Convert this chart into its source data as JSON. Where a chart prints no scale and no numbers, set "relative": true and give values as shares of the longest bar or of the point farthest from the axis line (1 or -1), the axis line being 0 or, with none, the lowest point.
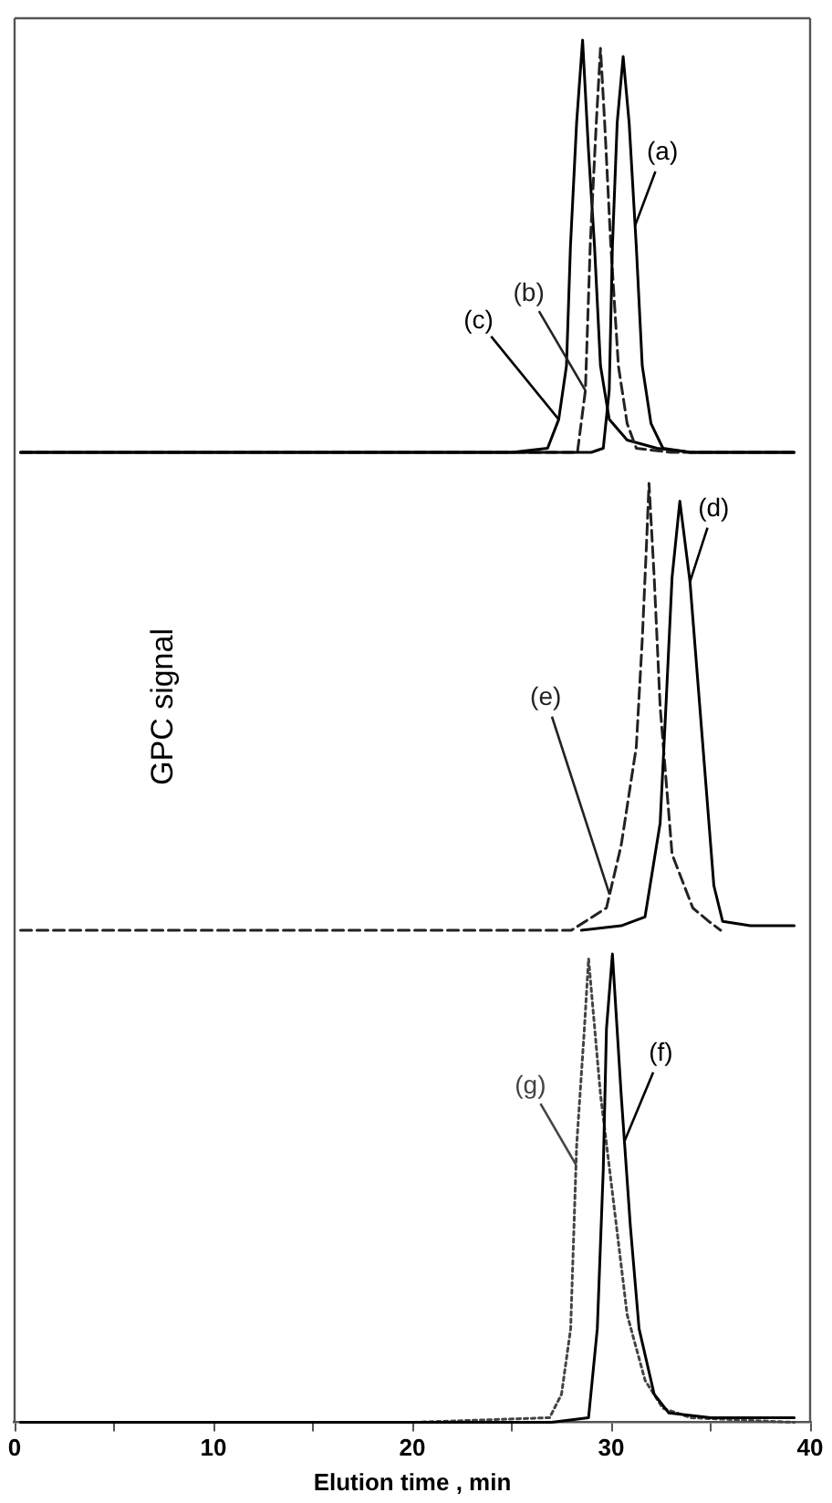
{
  "chart_data": [
    {
      "type": "line",
      "relative": true,
      "xlim": [
        0,
        40
      ],
      "tick_labels": false,
      "series": [
        {
          "name": "(a)",
          "color": "#000000",
          "line_style": "solid",
          "x": [
            0.3,
            10,
            20,
            26,
            29.0,
            29.6,
            29.9,
            30.06,
            30.3,
            30.6,
            30.9,
            31.26,
            31.56,
            32.0,
            32.6,
            34,
            36,
            39.2
          ],
          "values": [
            0,
            0,
            0,
            0,
            0,
            0.01,
            0.15,
            0.5,
            0.8,
            0.96,
            0.8,
            0.5,
            0.21,
            0.07,
            0.01,
            0,
            0,
            0
          ]
        },
        {
          "name": "(b)",
          "color": "#222222",
          "line_style": "dashed",
          "x": [
            0.3,
            10,
            20,
            27,
            28.3,
            28.7,
            28.95,
            29.25,
            29.46,
            29.67,
            29.97,
            30.36,
            30.8,
            31.26,
            33,
            36,
            39.2
          ],
          "values": [
            0,
            0,
            0,
            0,
            0,
            0.15,
            0.51,
            0.8,
            0.98,
            0.8,
            0.51,
            0.21,
            0.07,
            0.01,
            0,
            0,
            0
          ]
        },
        {
          "name": "(c)",
          "color": "#000000",
          "line_style": "solid",
          "x": [
            0.3,
            10,
            20,
            25,
            26.8,
            27.36,
            27.75,
            27.95,
            28.26,
            28.56,
            28.86,
            29.16,
            29.46,
            29.9,
            30.8,
            32.3,
            34,
            36,
            39.2
          ],
          "values": [
            0,
            0,
            0,
            0,
            0.01,
            0.08,
            0.21,
            0.5,
            0.8,
            1,
            0.73,
            0.5,
            0.21,
            0.08,
            0.03,
            0.01,
            0,
            0,
            0
          ]
        }
      ]
    },
    {
      "type": "line",
      "relative": true,
      "xlim": [
        0,
        40
      ],
      "tick_labels": false,
      "ylabel": "GPC signal",
      "series": [
        {
          "name": "(d)",
          "color": "#000000",
          "line_style": "solid",
          "x": [
            28.5,
            30.5,
            31.7,
            32.46,
            32.76,
            33.06,
            33.45,
            33.96,
            34.56,
            35.16,
            35.6,
            37,
            39.2
          ],
          "values": [
            0,
            0.01,
            0.03,
            0.24,
            0.51,
            0.79,
            0.96,
            0.78,
            0.44,
            0.1,
            0.02,
            0.01,
            0.01
          ]
        },
        {
          "name": "(e)",
          "color": "#222222",
          "line_style": "dashed",
          "x": [
            0.3,
            10,
            20,
            28,
            29.76,
            30.5,
            31.26,
            31.56,
            31.77,
            31.9,
            32.16,
            32.46,
            33.06,
            34.1,
            34.9,
            35.5
          ],
          "values": [
            0,
            0,
            0,
            0,
            0.05,
            0.19,
            0.41,
            0.65,
            0.86,
            1,
            0.79,
            0.5,
            0.17,
            0.05,
            0.02,
            0
          ]
        }
      ]
    },
    {
      "type": "line",
      "relative": true,
      "xlim": [
        0,
        40
      ],
      "tick_labels": "x",
      "xlabel": "Elution time , min",
      "xticks": [
        0,
        {
          "value": 5,
          "label": null
        },
        10,
        {
          "value": 15,
          "label": null
        },
        20,
        {
          "value": 25,
          "label": null
        },
        30,
        {
          "value": 35,
          "label": null
        },
        40
      ],
      "series": [
        {
          "name": "(f)",
          "color": "#000000",
          "line_style": "solid",
          "x": [
            0.3,
            10,
            20,
            27,
            28.86,
            29.3,
            29.6,
            29.76,
            30.06,
            30.5,
            30.96,
            31.4,
            32.16,
            32.9,
            35,
            39.2
          ],
          "values": [
            0,
            0,
            0,
            0,
            0.01,
            0.2,
            0.54,
            0.84,
            1,
            0.7,
            0.42,
            0.2,
            0.06,
            0.02,
            0.01,
            0.01
          ]
        },
        {
          "name": "(g)",
          "color": "#444444",
          "line_style": "dotted",
          "x": [
            0.3,
            10,
            20,
            26.9,
            27.5,
            27.96,
            28.26,
            28.65,
            28.86,
            29.46,
            30.06,
            30.8,
            31.7,
            32.6,
            34,
            39.2
          ],
          "values": [
            0,
            0,
            0,
            0.01,
            0.06,
            0.2,
            0.59,
            0.84,
            0.99,
            0.7,
            0.49,
            0.23,
            0.09,
            0.03,
            0.01,
            0
          ]
        }
      ]
    }
  ]
}
